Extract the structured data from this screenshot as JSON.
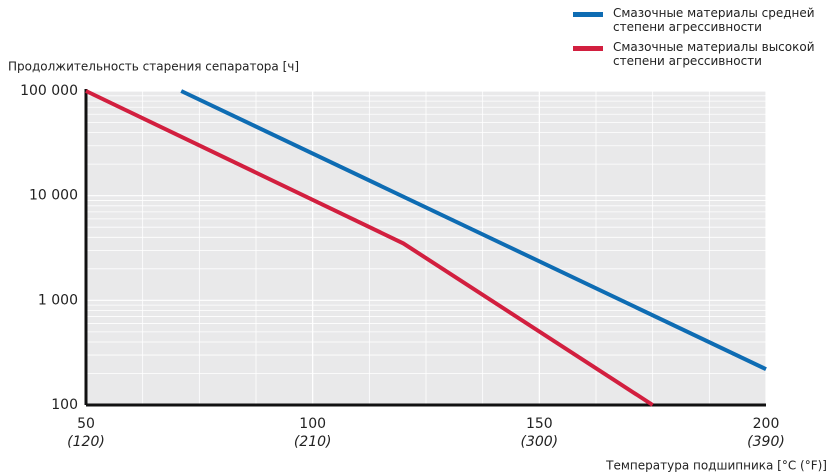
{
  "chart_data": {
    "type": "line",
    "y_label": "Продолжительность старения сепаратора [ч]",
    "x_label": "Температура подшипника [°C (°F)]",
    "xlim": [
      50,
      200
    ],
    "xticks": [
      50,
      100,
      150,
      200
    ],
    "xticks_secondary": [
      "(120)",
      "(210)",
      "(300)",
      "(390)"
    ],
    "ylim": [
      100,
      100000
    ],
    "yticks": [
      100,
      {
        "value": 1000,
        "label": "1 000"
      },
      {
        "value": 10000,
        "label": "10 000"
      },
      {
        "value": 100000,
        "label": "100 000"
      }
    ],
    "log_y": true,
    "grid": true,
    "legend": "upper right",
    "series": [
      {
        "name": "Смазочные материалы средней степени агрессивности",
        "color": "#0e6cb3",
        "x": [
          71,
          200
        ],
        "values": [
          100000,
          220
        ]
      },
      {
        "name": "Смазочные материалы высокой степени агрессивности",
        "color": "#d21f3f",
        "x": [
          50,
          120,
          175
        ],
        "values": [
          100000,
          3500,
          100
        ]
      }
    ]
  }
}
